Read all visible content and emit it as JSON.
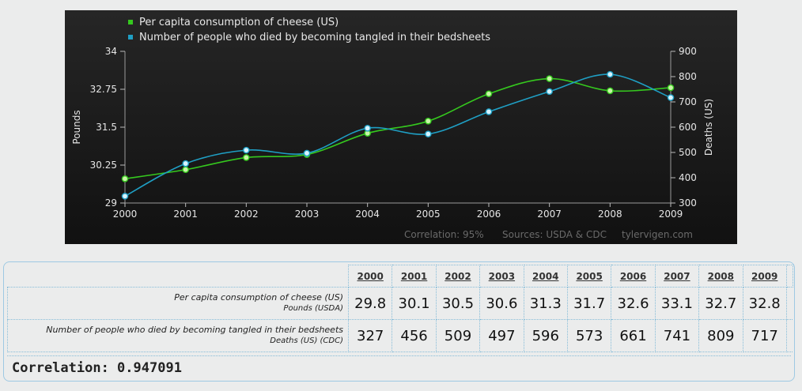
{
  "chart_data": {
    "type": "line",
    "categories": [
      "2000",
      "2001",
      "2002",
      "2003",
      "2004",
      "2005",
      "2006",
      "2007",
      "2008",
      "2009"
    ],
    "series": [
      {
        "name": "Per capita consumption of cheese (US)",
        "axis": "left",
        "color": "#35c81e",
        "values": [
          29.8,
          30.1,
          30.5,
          30.6,
          31.3,
          31.7,
          32.6,
          33.1,
          32.7,
          32.8
        ]
      },
      {
        "name": "Number of people who died by becoming tangled in their bedsheets",
        "axis": "right",
        "color": "#1f9fc4",
        "values": [
          327,
          456,
          509,
          497,
          596,
          573,
          661,
          741,
          809,
          717
        ]
      }
    ],
    "left_axis": {
      "label": "Pounds",
      "ticks": [
        "29",
        "30.25",
        "31.5",
        "32.75",
        "34"
      ],
      "range": [
        29,
        34
      ]
    },
    "right_axis": {
      "label": "Deaths (US)",
      "ticks": [
        "300",
        "400",
        "500",
        "600",
        "700",
        "800",
        "900"
      ],
      "range": [
        300,
        900
      ]
    },
    "footer": {
      "correlation": "Correlation: 95%",
      "sources": "Sources: USDA & CDC",
      "site": "tylervigen.com"
    },
    "legend_position": "top-left"
  },
  "table": {
    "years": [
      "2000",
      "2001",
      "2002",
      "2003",
      "2004",
      "2005",
      "2006",
      "2007",
      "2008",
      "2009"
    ],
    "rows": [
      {
        "label": "Per capita consumption of cheese (US)",
        "sublabel": "Pounds (USDA)",
        "values": [
          "29.8",
          "30.1",
          "30.5",
          "30.6",
          "31.3",
          "31.7",
          "32.6",
          "33.1",
          "32.7",
          "32.8"
        ]
      },
      {
        "label": "Number of people who died by becoming tangled in their bedsheets",
        "sublabel": "Deaths (US) (CDC)",
        "values": [
          "327",
          "456",
          "509",
          "497",
          "596",
          "573",
          "661",
          "741",
          "809",
          "717"
        ]
      }
    ],
    "correlation": "Correlation: 0.947091"
  }
}
